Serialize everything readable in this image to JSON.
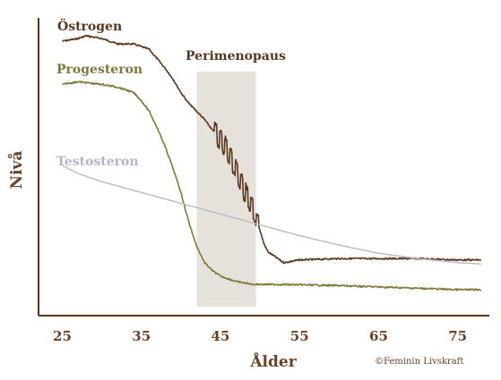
{
  "chart_data": {
    "type": "line",
    "title": "",
    "xlabel": "Ålder",
    "ylabel": "Nivå",
    "xlim": [
      22,
      79
    ],
    "ylim": [
      0,
      100
    ],
    "x_ticks": [
      25,
      35,
      45,
      55,
      65,
      75
    ],
    "grid": false,
    "band": {
      "label": "Perimenopaus",
      "x_start": 42,
      "x_end": 49.5
    },
    "credit": "©Feminin Livskraft",
    "series": [
      {
        "name": "Östrogen",
        "color": "#5a3820",
        "x": [
          25,
          27,
          28,
          30,
          32,
          34,
          36,
          38,
          39,
          40,
          41,
          42,
          43,
          44,
          45,
          46,
          47,
          48,
          49,
          49.5,
          50,
          50.5,
          51,
          52,
          53,
          55,
          60,
          65,
          70,
          75,
          78
        ],
        "y": [
          94,
          95,
          96,
          95,
          93,
          93,
          91,
          84,
          80,
          75,
          71,
          68,
          65,
          61,
          58,
          53,
          46,
          39,
          33,
          28,
          24,
          19,
          16,
          14,
          12,
          13,
          13.5,
          13.5,
          13.5,
          13,
          13
        ]
      },
      {
        "name": "Progesteron",
        "color": "#7d7a3a",
        "x": [
          25,
          27,
          30,
          32,
          33,
          34,
          35,
          36,
          37,
          38,
          39,
          40,
          41,
          42,
          43,
          44,
          45,
          46,
          47,
          48,
          49,
          49.5,
          55,
          60,
          65,
          70,
          75,
          78
        ],
        "y": [
          78,
          79,
          78,
          77,
          76,
          75,
          72,
          68,
          62,
          55,
          47,
          38,
          27,
          18,
          12,
          9,
          7,
          6,
          5,
          4.5,
          4,
          4,
          3.8,
          3.5,
          3,
          2.5,
          2,
          2
        ]
      },
      {
        "name": "Testosteron",
        "color": "#bcb8c8",
        "x": [
          25,
          27,
          30,
          35,
          40,
          45,
          50,
          55,
          60,
          65,
          70,
          75,
          78
        ],
        "y": [
          48,
          45,
          42,
          38,
          34,
          30,
          26,
          22,
          18.5,
          15.5,
          13.5,
          12,
          11.5
        ]
      }
    ]
  }
}
